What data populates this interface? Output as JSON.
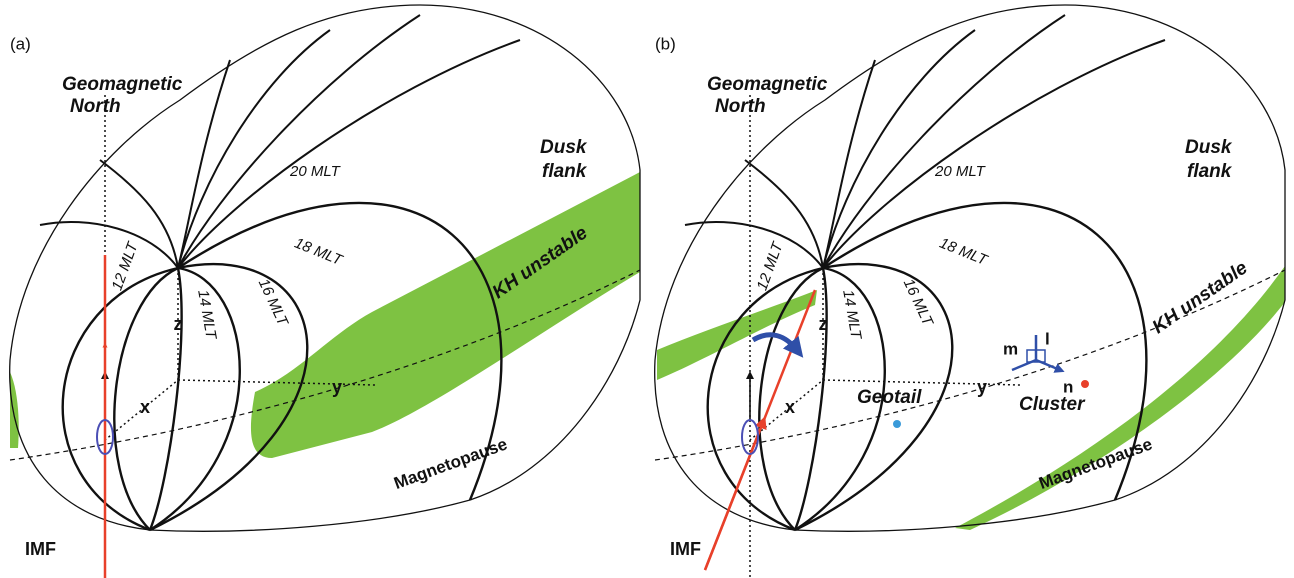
{
  "panels": [
    {
      "label": "(a)",
      "north": [
        "Geomagnetic",
        "North"
      ],
      "dusk": [
        "Dusk",
        "flank"
      ],
      "mlt": [
        "20 MLT",
        "18 MLT",
        "16 MLT",
        "14 MLT",
        "12 MLT"
      ],
      "axes": [
        "z",
        "x",
        "y"
      ],
      "kh": "KH unstable",
      "magnetopause": "Magnetopause",
      "imf": "IMF"
    },
    {
      "label": "(b)",
      "north": [
        "Geomagnetic",
        "North"
      ],
      "dusk": [
        "Dusk",
        "flank"
      ],
      "mlt": [
        "20 MLT",
        "18 MLT",
        "16 MLT",
        "14 MLT",
        "12 MLT"
      ],
      "axes": [
        "z",
        "x",
        "y"
      ],
      "kh": "KH unstable",
      "magnetopause": "Magnetopause",
      "imf": "IMF",
      "spacecraft": [
        "Geotail",
        "Cluster"
      ],
      "lmn": [
        "m",
        "l",
        "n"
      ]
    }
  ]
}
